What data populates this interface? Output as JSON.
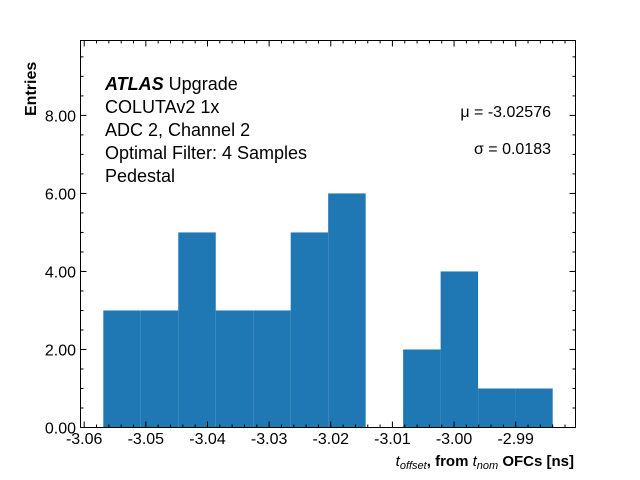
{
  "chart_data": {
    "type": "bar",
    "subtype": "histogram",
    "bin_edges": [
      -3.0569,
      -3.05082,
      -3.04474,
      -3.03866,
      -3.03258,
      -3.0265,
      -3.02042,
      -3.01434,
      -3.00826,
      -3.00218,
      -2.9961,
      -2.99002,
      -2.984
    ],
    "values": [
      3,
      3,
      5,
      3,
      3,
      5,
      6,
      0,
      2,
      4,
      1,
      1
    ],
    "color": "#1f77b4",
    "xlim": [
      -3.0606,
      -2.9803
    ],
    "ylim": [
      0,
      9.92
    ],
    "xticks": [
      -3.06,
      -3.05,
      -3.04,
      -3.03,
      -3.02,
      -3.01,
      -3.0,
      -2.99
    ],
    "xtick_labels": [
      "-3.06",
      "-3.05",
      "-3.04",
      "-3.03",
      "-3.02",
      "-3.01",
      "-3.00",
      "-2.99"
    ],
    "yticks": [
      0,
      2,
      4,
      6,
      8
    ],
    "ytick_labels": [
      "0.00",
      "2.00",
      "4.00",
      "6.00",
      "8.00"
    ],
    "xlabel": {
      "t": "t",
      "sub1": "offset",
      "mid": ", from ",
      "t2": "t",
      "sub2": "nom",
      "end": " OFCs [ns]"
    },
    "ylabel": "Entries",
    "grid": false,
    "annotations": {
      "atlas": "ATLAS",
      "upgrade": " Upgrade",
      "lines": [
        "COLUTAv2 1x",
        "ADC 2, Channel 2",
        "Optimal Filter: 4 Samples",
        "Pedestal"
      ],
      "mu": "μ = -3.02576",
      "sigma": "σ = 0.0183"
    }
  }
}
